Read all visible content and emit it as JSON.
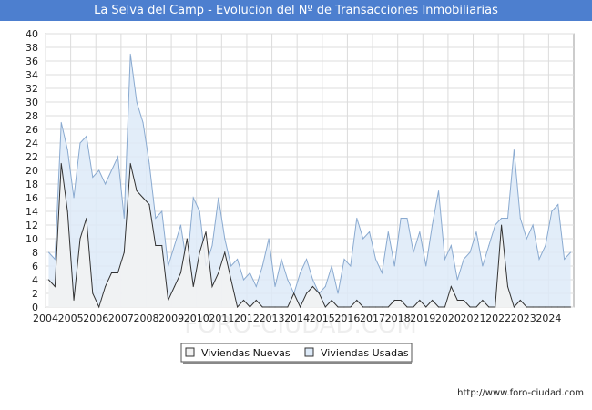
{
  "chart_data": {
    "type": "area",
    "title": "La Selva del Camp - Evolucion del Nº de Transacciones Inmobiliarias",
    "xlabel": "",
    "ylabel": "",
    "ylim": [
      0,
      40
    ],
    "yticks": [
      0,
      2,
      4,
      6,
      8,
      10,
      12,
      14,
      16,
      18,
      20,
      22,
      24,
      26,
      28,
      30,
      32,
      34,
      36,
      38,
      40
    ],
    "xticks": [
      "2004",
      "2005",
      "2006",
      "2007",
      "2008",
      "2009",
      "2010",
      "2011",
      "2012",
      "2013",
      "2014",
      "2015",
      "2016",
      "2017",
      "2018",
      "2019",
      "2020",
      "2021",
      "2022",
      "2023",
      "2024"
    ],
    "x_period": "quarterly, 2004 Q1 - 2024 Q4",
    "grid": true,
    "legend_position": "bottom",
    "series": [
      {
        "name": "Viviendas Nuevas",
        "fill": "#f2f2f2",
        "stroke": "#333333",
        "values": [
          4,
          3,
          21,
          14,
          1,
          10,
          13,
          2,
          0,
          3,
          5,
          5,
          8,
          21,
          17,
          16,
          15,
          9,
          9,
          1,
          3,
          5,
          10,
          3,
          8,
          11,
          3,
          5,
          8,
          4,
          0,
          1,
          0,
          1,
          0,
          0,
          0,
          0,
          0,
          2,
          0,
          2,
          3,
          2,
          0,
          1,
          0,
          0,
          0,
          1,
          0,
          0,
          0,
          0,
          0,
          1,
          1,
          0,
          0,
          1,
          0,
          1,
          0,
          0,
          3,
          1,
          1,
          0,
          0,
          1,
          0,
          0,
          12,
          3,
          0,
          1,
          0,
          0,
          0,
          0,
          0,
          0,
          0,
          0
        ]
      },
      {
        "name": "Viviendas Usadas",
        "fill": "#ddeaf8",
        "stroke": "#8aaad0",
        "values": [
          8,
          7,
          27,
          23,
          16,
          24,
          25,
          19,
          20,
          18,
          20,
          22,
          13,
          37,
          30,
          27,
          21,
          13,
          14,
          6,
          9,
          12,
          6,
          16,
          14,
          6,
          9,
          16,
          10,
          6,
          7,
          4,
          5,
          3,
          6,
          10,
          3,
          7,
          4,
          2,
          5,
          7,
          4,
          2,
          3,
          6,
          2,
          7,
          6,
          13,
          10,
          11,
          7,
          5,
          11,
          6,
          13,
          13,
          8,
          11,
          6,
          12,
          17,
          7,
          9,
          4,
          7,
          8,
          11,
          6,
          9,
          12,
          13,
          13,
          23,
          13,
          10,
          12,
          7,
          9,
          14,
          15,
          7,
          8
        ]
      }
    ]
  },
  "footer": {
    "url": "http://www.foro-ciudad.com"
  },
  "watermark": "FORO-CIUDAD.COM"
}
